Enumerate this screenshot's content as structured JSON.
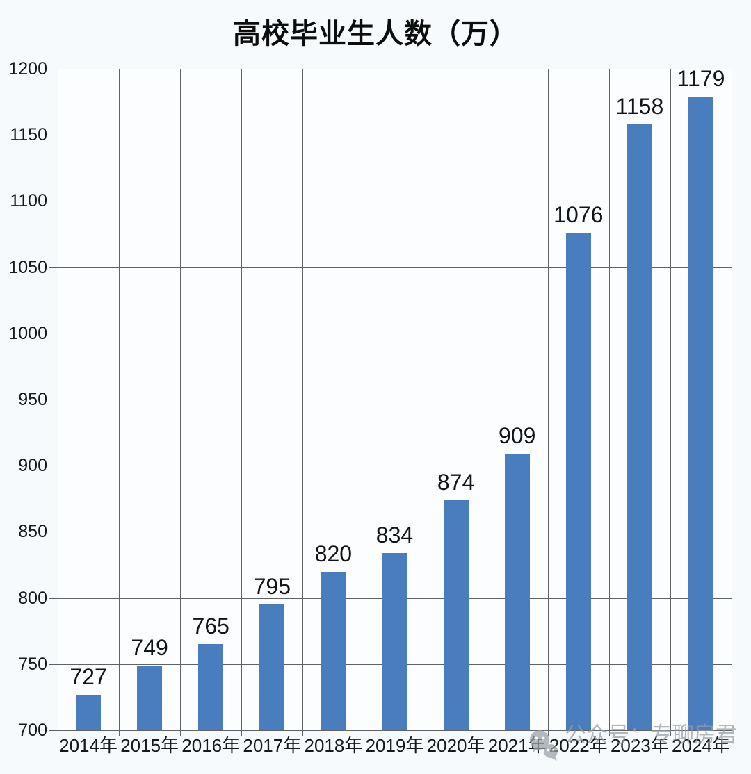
{
  "chart_data": {
    "type": "bar",
    "title": "高校毕业生人数（万）",
    "categories": [
      "2014年",
      "2015年",
      "2016年",
      "2017年",
      "2018年",
      "2019年",
      "2020年",
      "2021年",
      "2022年",
      "2023年",
      "2024年"
    ],
    "values": [
      727,
      749,
      765,
      795,
      820,
      834,
      874,
      909,
      1076,
      1158,
      1179
    ],
    "xlabel": "",
    "ylabel": "",
    "ylim": [
      700,
      1200
    ],
    "yticks": [
      700,
      750,
      800,
      850,
      900,
      950,
      1000,
      1050,
      1100,
      1150,
      1200
    ],
    "grid": true,
    "legend": false,
    "value_labels": true,
    "bar_color": "#4a7dbe",
    "gridline_color": "#5f6368",
    "background_color": "#f6fafd"
  },
  "watermark": {
    "icon": "wechat-icon",
    "text": "公众号：专聊房君",
    "color": "#989ea4"
  }
}
